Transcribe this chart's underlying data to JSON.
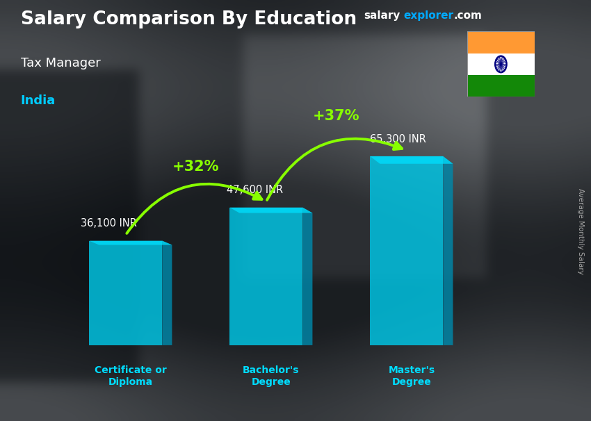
{
  "title": "Salary Comparison By Education",
  "subtitle": "Tax Manager",
  "country": "India",
  "categories": [
    "Certificate or\nDiploma",
    "Bachelor's\nDegree",
    "Master's\nDegree"
  ],
  "values": [
    36100,
    47600,
    65300
  ],
  "value_labels": [
    "36,100 INR",
    "47,600 INR",
    "65,300 INR"
  ],
  "pct_labels": [
    "+32%",
    "+37%"
  ],
  "bar_front_color": "#00c8e8",
  "bar_side_color": "#0088aa",
  "bar_top_color": "#00e0ff",
  "bar_alpha": 0.82,
  "arrow_color": "#88ff00",
  "title_color": "#ffffff",
  "subtitle_color": "#ffffff",
  "country_color": "#00ccff",
  "value_label_color": "#ffffff",
  "cat_label_color": "#00ddff",
  "site_salary_color": "#ffffff",
  "site_explorer_color": "#00aaff",
  "site_com_color": "#ffffff",
  "ylabel_color": "#aaaaaa",
  "ylabel_text": "Average Monthly Salary",
  "flag_saffron": "#FF9933",
  "flag_white": "#ffffff",
  "flag_green": "#138808",
  "flag_chakra": "#000080"
}
